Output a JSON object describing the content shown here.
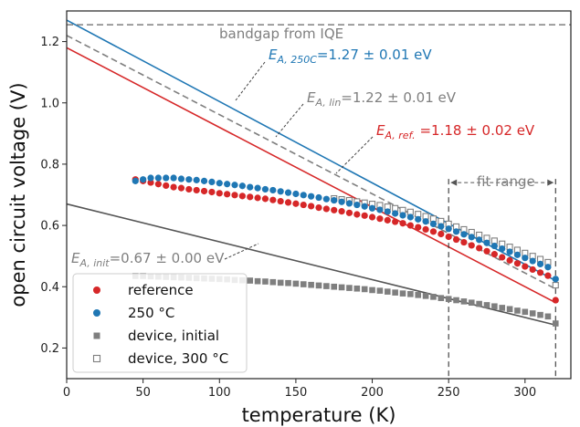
{
  "chart_data": {
    "type": "scatter",
    "xlabel": "temperature (K)",
    "ylabel": "open circuit voltage (V)",
    "xlim": [
      0,
      330
    ],
    "ylim": [
      0.1,
      1.3
    ],
    "x_ticks": [
      0,
      50,
      100,
      150,
      200,
      250,
      300
    ],
    "y_ticks": [
      0.2,
      0.4,
      0.6,
      0.8,
      1.0,
      1.2
    ],
    "grid": false,
    "legend_position": "bottom-left",
    "legend": [
      {
        "label": "reference",
        "color": "#d62728",
        "marker": "circle"
      },
      {
        "label": "250 °C",
        "color": "#1f77b4",
        "marker": "circle"
      },
      {
        "label": "device, initial",
        "color": "#7f7f7f",
        "marker": "square"
      },
      {
        "label": "device, 300 °C",
        "color": "#7f7f7f",
        "marker": "square-open"
      }
    ],
    "reference_line": {
      "label": "bandgap from IQE",
      "y": 1.255,
      "style": "dashed",
      "color": "#7f7f7f"
    },
    "fit_range": {
      "label": "fit range",
      "x": [
        250,
        320
      ]
    },
    "series": [
      {
        "name": "reference",
        "color": "#d62728",
        "marker": "circle",
        "x": [
          45,
          50,
          55,
          60,
          65,
          70,
          75,
          80,
          85,
          90,
          95,
          100,
          105,
          110,
          115,
          120,
          125,
          130,
          135,
          140,
          145,
          150,
          155,
          160,
          165,
          170,
          175,
          180,
          185,
          190,
          195,
          200,
          205,
          210,
          215,
          220,
          225,
          230,
          235,
          240,
          245,
          250,
          255,
          260,
          265,
          270,
          275,
          280,
          285,
          290,
          295,
          300,
          305,
          310,
          315,
          320
        ],
        "y": [
          0.75,
          0.745,
          0.74,
          0.735,
          0.73,
          0.725,
          0.722,
          0.718,
          0.715,
          0.712,
          0.709,
          0.705,
          0.702,
          0.699,
          0.696,
          0.693,
          0.69,
          0.687,
          0.683,
          0.679,
          0.675,
          0.671,
          0.667,
          0.663,
          0.658,
          0.654,
          0.65,
          0.646,
          0.641,
          0.636,
          0.632,
          0.627,
          0.622,
          0.617,
          0.612,
          0.607,
          0.6,
          0.594,
          0.587,
          0.58,
          0.572,
          0.563,
          0.554,
          0.545,
          0.535,
          0.526,
          0.516,
          0.506,
          0.496,
          0.486,
          0.476,
          0.466,
          0.456,
          0.446,
          0.436,
          0.356
        ]
      },
      {
        "name": "250 °C",
        "color": "#1f77b4",
        "marker": "circle",
        "x": [
          45,
          50,
          55,
          60,
          65,
          70,
          75,
          80,
          85,
          90,
          95,
          100,
          105,
          110,
          115,
          120,
          125,
          130,
          135,
          140,
          145,
          150,
          155,
          160,
          165,
          170,
          175,
          180,
          185,
          190,
          195,
          200,
          205,
          210,
          215,
          220,
          225,
          230,
          235,
          240,
          245,
          250,
          255,
          260,
          265,
          270,
          275,
          280,
          285,
          290,
          295,
          300,
          305,
          310,
          315,
          320
        ],
        "y": [
          0.745,
          0.75,
          0.755,
          0.755,
          0.755,
          0.755,
          0.752,
          0.75,
          0.748,
          0.745,
          0.742,
          0.738,
          0.735,
          0.732,
          0.729,
          0.725,
          0.722,
          0.718,
          0.715,
          0.711,
          0.707,
          0.703,
          0.699,
          0.695,
          0.691,
          0.686,
          0.682,
          0.677,
          0.672,
          0.667,
          0.662,
          0.656,
          0.651,
          0.645,
          0.639,
          0.633,
          0.627,
          0.62,
          0.613,
          0.605,
          0.597,
          0.589,
          0.58,
          0.571,
          0.562,
          0.553,
          0.543,
          0.533,
          0.524,
          0.514,
          0.504,
          0.494,
          0.484,
          0.474,
          0.464,
          0.425
        ]
      },
      {
        "name": "device, initial",
        "color": "#7f7f7f",
        "marker": "square",
        "x": [
          45,
          50,
          55,
          60,
          65,
          70,
          75,
          80,
          85,
          90,
          95,
          100,
          105,
          110,
          115,
          120,
          125,
          130,
          135,
          140,
          145,
          150,
          155,
          160,
          165,
          170,
          175,
          180,
          185,
          190,
          195,
          200,
          205,
          210,
          215,
          220,
          225,
          230,
          235,
          240,
          245,
          250,
          255,
          260,
          265,
          270,
          275,
          280,
          285,
          290,
          295,
          300,
          305,
          310,
          315,
          320
        ],
        "y": [
          0.435,
          0.435,
          0.434,
          0.433,
          0.432,
          0.431,
          0.43,
          0.429,
          0.428,
          0.427,
          0.426,
          0.425,
          0.424,
          0.422,
          0.421,
          0.42,
          0.418,
          0.417,
          0.415,
          0.413,
          0.412,
          0.41,
          0.408,
          0.406,
          0.404,
          0.402,
          0.4,
          0.398,
          0.396,
          0.394,
          0.392,
          0.389,
          0.387,
          0.384,
          0.381,
          0.378,
          0.376,
          0.373,
          0.37,
          0.367,
          0.363,
          0.36,
          0.356,
          0.352,
          0.348,
          0.344,
          0.34,
          0.336,
          0.331,
          0.327,
          0.322,
          0.318,
          0.313,
          0.308,
          0.303,
          0.28
        ]
      },
      {
        "name": "device, 300 °C",
        "color": "#7f7f7f",
        "marker": "square-open",
        "x": [
          175,
          180,
          185,
          190,
          195,
          200,
          205,
          210,
          215,
          220,
          225,
          230,
          235,
          240,
          245,
          250,
          255,
          260,
          265,
          270,
          275,
          280,
          285,
          290,
          295,
          300,
          305,
          310,
          315,
          320
        ],
        "y": [
          0.688,
          0.685,
          0.682,
          0.678,
          0.674,
          0.67,
          0.666,
          0.661,
          0.656,
          0.65,
          0.644,
          0.637,
          0.63,
          0.622,
          0.614,
          0.605,
          0.596,
          0.587,
          0.578,
          0.569,
          0.559,
          0.55,
          0.54,
          0.53,
          0.52,
          0.51,
          0.5,
          0.49,
          0.48,
          0.405
        ]
      }
    ],
    "fit_lines": [
      {
        "name": "E_A,250C",
        "color": "#1f77b4",
        "style": "solid",
        "x": [
          0,
          320
        ],
        "y": [
          1.27,
          0.42
        ]
      },
      {
        "name": "E_A,lin",
        "color": "#7f7f7f",
        "style": "dashed",
        "x": [
          0,
          320
        ],
        "y": [
          1.22,
          0.393
        ]
      },
      {
        "name": "E_A,ref",
        "color": "#d62728",
        "style": "solid",
        "x": [
          0,
          320
        ],
        "y": [
          1.18,
          0.348
        ]
      },
      {
        "name": "E_A,init",
        "color": "#555555",
        "style": "solid",
        "x": [
          0,
          320
        ],
        "y": [
          0.67,
          0.275
        ]
      }
    ],
    "annotations": [
      {
        "id": "bandgap",
        "text": "bandgap from IQE",
        "color": "#7f7f7f"
      },
      {
        "id": "ea250",
        "sym": "E",
        "sub": "A, 250C",
        "value": "=1.27 ± 0.01 eV",
        "color": "#1f77b4"
      },
      {
        "id": "ealin",
        "sym": "E",
        "sub": "A, lin",
        "value": "=1.22 ± 0.01 eV",
        "color": "#7f7f7f"
      },
      {
        "id": "earef",
        "sym": "E",
        "sub": "A, ref.",
        "value": " =1.18 ± 0.02 eV",
        "color": "#d62728"
      },
      {
        "id": "eainit",
        "sym": "E",
        "sub": "A, init",
        "value": "=0.67 ± 0.00 eV",
        "color": "#7f7f7f"
      },
      {
        "id": "fitrange",
        "text": "fit range",
        "color": "#7f7f7f"
      }
    ]
  }
}
